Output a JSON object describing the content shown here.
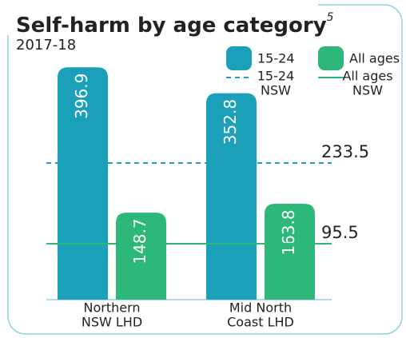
{
  "chart_data": {
    "type": "bar",
    "title": "Self-harm by age category",
    "title_superscript": "5",
    "subtitle": "2017-18",
    "categories": [
      [
        "Northern",
        "NSW LHD"
      ],
      [
        "Mid North",
        "Coast LHD"
      ]
    ],
    "series": [
      {
        "name": "15-24",
        "color": "#1aa0b8",
        "values": [
          396.9,
          352.8
        ]
      },
      {
        "name": "All ages",
        "color": "#2db87a",
        "values": [
          148.7,
          163.8
        ]
      }
    ],
    "reference_lines": [
      {
        "name": [
          "15-24",
          "NSW"
        ],
        "value": 233.5,
        "color": "#1aa0b8",
        "style": "dashed"
      },
      {
        "name": [
          "All ages",
          "NSW"
        ],
        "value": 95.5,
        "color": "#2db87a",
        "style": "solid"
      }
    ],
    "ylim": [
      0,
      400
    ]
  }
}
